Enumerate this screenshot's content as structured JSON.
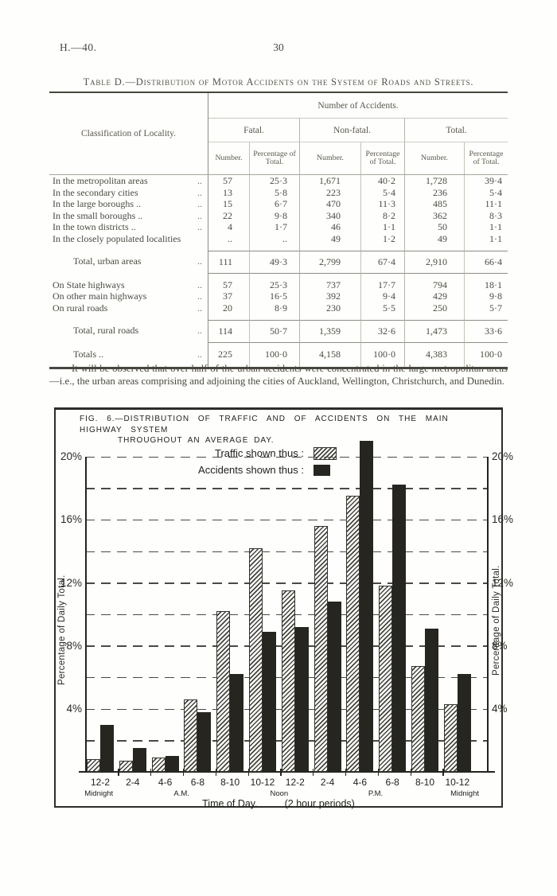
{
  "page": {
    "doc_ref": "H.—40.",
    "page_number": "30"
  },
  "table": {
    "title": "Table D.—Distribution of Motor Accidents on the System of Roads and Streets.",
    "row_header": "Classification of Locality.",
    "col_group_header": "Number of Accidents.",
    "groups": [
      "Fatal.",
      "Non-fatal.",
      "Total."
    ],
    "sub_headers": [
      "Number.",
      "Percentage of Total."
    ],
    "rows": [
      {
        "type": "data",
        "label": "In the metropolitan areas",
        "leaders": "..",
        "values": [
          "57",
          "25·3",
          "1,671",
          "40·2",
          "1,728",
          "39·4"
        ]
      },
      {
        "type": "data",
        "label": "In the secondary cities",
        "leaders": "..",
        "values": [
          "13",
          "5·8",
          "223",
          "5·4",
          "236",
          "5·4"
        ]
      },
      {
        "type": "data",
        "label": "In the large boroughs ..",
        "leaders": "..",
        "values": [
          "15",
          "6·7",
          "470",
          "11·3",
          "485",
          "11·1"
        ]
      },
      {
        "type": "data",
        "label": "In the small boroughs ..",
        "leaders": "..",
        "values": [
          "22",
          "9·8",
          "340",
          "8·2",
          "362",
          "8·3"
        ]
      },
      {
        "type": "data",
        "label": "In the town districts ..",
        "leaders": "..",
        "values": [
          "4",
          "1·7",
          "46",
          "1·1",
          "50",
          "1·1"
        ]
      },
      {
        "type": "data last",
        "label": "In the closely populated localities",
        "leaders": "",
        "values": [
          "..",
          "..",
          "49",
          "1·2",
          "49",
          "1·1"
        ]
      },
      {
        "type": "sub",
        "label": "Total, urban areas",
        "leaders": "..",
        "values": [
          "111",
          "49·3",
          "2,799",
          "67·4",
          "2,910",
          "66·4"
        ]
      },
      {
        "type": "data after",
        "label": "On State highways",
        "leaders": "..",
        "values": [
          "57",
          "25·3",
          "737",
          "17·7",
          "794",
          "18·1"
        ]
      },
      {
        "type": "data",
        "label": "On other main highways",
        "leaders": "..",
        "values": [
          "37",
          "16·5",
          "392",
          "9·4",
          "429",
          "9·8"
        ]
      },
      {
        "type": "data last",
        "label": "On rural roads",
        "leaders": "..",
        "values": [
          "20",
          "8·9",
          "230",
          "5·5",
          "250",
          "5·7"
        ]
      },
      {
        "type": "sub",
        "label": "Total, rural roads",
        "leaders": "..",
        "values": [
          "114",
          "50·7",
          "1,359",
          "32·6",
          "1,473",
          "33·6"
        ]
      },
      {
        "type": "grand",
        "label": "Totals ..",
        "leaders": "..",
        "values": [
          "225",
          "100·0",
          "4,158",
          "100·0",
          "4,383",
          "100·0"
        ]
      }
    ]
  },
  "paragraph": "It will be observed that over half of the urban accidents were concentrated in the large metropolitan areas—i.e., the urban areas comprising and adjoining the cities of Auckland, Wellington, Christchurch, and Dunedin.",
  "figure": {
    "fig_title_line1": "FIG. 6.—DISTRIBUTION OF TRAFFIC AND OF ACCIDENTS ON THE MAIN HIGHWAY SYSTEM",
    "fig_title_line2": "THROUGHOUT AN AVERAGE DAY.",
    "legend": {
      "traffic_label": "Traffic shown thus :",
      "accidents_label": "Accidents shown thus :"
    },
    "x_caption_1": "Time of Day.",
    "x_caption_2": "(2 hour periods)"
  },
  "chart_data": {
    "type": "bar",
    "title": "FIG. 6.—DISTRIBUTION OF TRAFFIC AND OF ACCIDENTS ON THE MAIN HIGHWAY SYSTEM THROUGHOUT AN AVERAGE DAY.",
    "categories": [
      "12-2",
      "2-4",
      "4-6",
      "6-8",
      "8-10",
      "10-12",
      "12-2",
      "2-4",
      "4-6",
      "6-8",
      "8-10",
      "10-12"
    ],
    "series": [
      {
        "name": "Traffic",
        "pattern": "hatched",
        "values": [
          0.8,
          0.7,
          0.9,
          4.6,
          10.2,
          14.2,
          11.5,
          15.6,
          17.5,
          11.8,
          6.7,
          4.3
        ]
      },
      {
        "name": "Accidents",
        "pattern": "solid",
        "values": [
          3.0,
          1.5,
          1.0,
          3.8,
          6.2,
          8.9,
          9.2,
          10.8,
          21.0,
          18.2,
          9.1,
          6.2
        ]
      }
    ],
    "xlabel": "Time of Day. (2 hour periods)",
    "ylabel": "Percentage of Daily Total.",
    "ylim": [
      0,
      22
    ],
    "yticks": [
      4,
      8,
      12,
      16,
      20
    ],
    "ytick_suffix": "%",
    "gridline_interval": 2,
    "grid_style": "dashed horizontal",
    "legend_position": "top inside",
    "period_markers": [
      {
        "label": "Midnight",
        "position_pct": 3.4
      },
      {
        "label": "A.M.",
        "position_pct": 23.9
      },
      {
        "label": "Noon",
        "position_pct": 48.1
      },
      {
        "label": "P.M.",
        "position_pct": 72.0
      },
      {
        "label": "Midnight",
        "position_pct": 94.1
      }
    ]
  }
}
